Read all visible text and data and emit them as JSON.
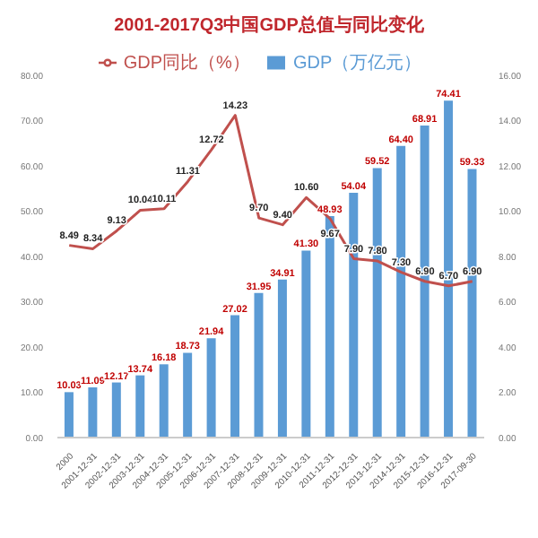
{
  "chart_data": {
    "type": "bar",
    "title": "2001-2017Q3中国GDP总值与同比变化",
    "categories": [
      "2000",
      "2001-12-31",
      "2002-12-31",
      "2003-12-31",
      "2004-12-31",
      "2005-12-31",
      "2006-12-31",
      "2007-12-31",
      "2008-12-31",
      "2009-12-31",
      "2010-12-31",
      "2011-12-31",
      "2012-12-31",
      "2013-12-31",
      "2014-12-31",
      "2015-12-31",
      "2016-12-31",
      "2017-09-30"
    ],
    "series": [
      {
        "name": "GDP（万亿元）",
        "color": "#5b9bd5",
        "values": [
          10.03,
          11.09,
          12.17,
          13.74,
          16.18,
          18.73,
          21.94,
          27.02,
          31.95,
          34.91,
          41.3,
          48.93,
          54.04,
          59.52,
          64.4,
          68.91,
          74.41,
          59.33
        ],
        "value_labels": [
          "10.03",
          "11.09",
          "12.17",
          "13.74",
          "16.18",
          "18.73",
          "21.94",
          "27.02",
          "31.95",
          "34.91",
          "41.30",
          "48.93",
          "54.04",
          "59.52",
          "64.40",
          "68.91",
          "74.41",
          "59.33"
        ]
      },
      {
        "name": "GDP同比（%）",
        "type": "line",
        "axis": "y2",
        "color": "#c0504d",
        "values": [
          8.49,
          8.34,
          9.13,
          10.04,
          10.11,
          11.31,
          12.72,
          14.23,
          9.7,
          9.4,
          10.6,
          9.67,
          7.9,
          7.8,
          7.3,
          6.9,
          6.7,
          6.9
        ],
        "value_labels": [
          "8.49",
          "8.34",
          "9.13",
          "10.04",
          "10.11",
          "11.31",
          "12.72",
          "14.23",
          "9.70",
          "9.40",
          "10.60",
          "9.67",
          "7.90",
          "7.80",
          "7.30",
          "6.90",
          "6.70",
          "6.90"
        ]
      }
    ],
    "ylim": [
      0,
      80
    ],
    "yticks": [
      {
        "value": 0,
        "label": "0.00"
      },
      {
        "value": 10,
        "label": "10.00"
      },
      {
        "value": 20,
        "label": "20.00"
      },
      {
        "value": 30,
        "label": "30.00"
      },
      {
        "value": 40,
        "label": "40.00"
      },
      {
        "value": 50,
        "label": "50.00"
      },
      {
        "value": 60,
        "label": "60.00"
      },
      {
        "value": 70,
        "label": "70.00"
      },
      {
        "value": 80,
        "label": "80.00"
      }
    ],
    "y2lim": [
      0,
      16
    ],
    "y2ticks": [
      {
        "value": 0,
        "label": "0.00"
      },
      {
        "value": 2,
        "label": "2.00"
      },
      {
        "value": 4,
        "label": "4.00"
      },
      {
        "value": 6,
        "label": "6.00"
      },
      {
        "value": 8,
        "label": "8.00"
      },
      {
        "value": 10,
        "label": "10.00"
      },
      {
        "value": 12,
        "label": "12.00"
      },
      {
        "value": 14,
        "label": "14.00"
      },
      {
        "value": 16,
        "label": "16.00"
      }
    ],
    "legend": "top",
    "grid": false,
    "marker": "none"
  }
}
